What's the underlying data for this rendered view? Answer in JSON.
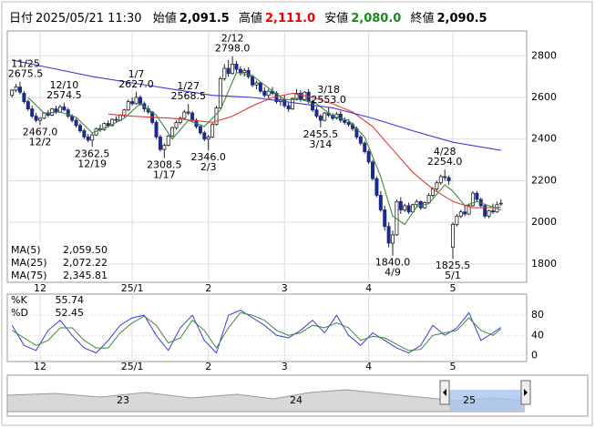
{
  "header": {
    "date_label": "日付",
    "datetime": "2025/05/21 11:30",
    "open_label": "始値",
    "open": {
      "value": 2091.5,
      "label": "2,091.5"
    },
    "high_label": "高値",
    "high": {
      "value": 2111.0,
      "label": "2,111.0"
    },
    "low_label": "安値",
    "low": {
      "value": 2080.0,
      "label": "2,080.0"
    },
    "close_label": "終値",
    "close": {
      "value": 2090.5,
      "label": "2,090.5"
    }
  },
  "chart_data": {
    "type": "candlestick",
    "categories": [
      null,
      null,
      null,
      null,
      null,
      null,
      null,
      "12",
      null,
      null,
      null,
      null,
      null,
      null,
      null,
      null,
      null,
      null,
      null,
      null,
      null,
      null,
      null,
      null,
      null,
      null,
      null,
      null,
      null,
      null,
      "25/1",
      null,
      null,
      null,
      null,
      null,
      null,
      null,
      null,
      null,
      null,
      null,
      null,
      null,
      null,
      null,
      null,
      null,
      null,
      "2",
      null,
      null,
      null,
      null,
      null,
      null,
      null,
      null,
      null,
      null,
      null,
      null,
      null,
      null,
      null,
      null,
      null,
      null,
      "3",
      null,
      null,
      null,
      null,
      null,
      null,
      null,
      null,
      null,
      null,
      null,
      null,
      null,
      null,
      null,
      null,
      null,
      null,
      null,
      null,
      "4",
      null,
      null,
      null,
      null,
      null,
      null,
      null,
      null,
      null,
      null,
      null,
      null,
      null,
      null,
      null,
      null,
      null,
      null,
      null,
      null,
      "5",
      null,
      null,
      null,
      null,
      null,
      null,
      null,
      null,
      null,
      null,
      null,
      null
    ],
    "ohlc": [
      [
        2610,
        2640,
        2600,
        2635
      ],
      [
        2635,
        2665,
        2625,
        2650
      ],
      [
        2650,
        2675.5,
        2615,
        2625
      ],
      [
        2620,
        2630,
        2570,
        2580
      ],
      [
        2580,
        2590,
        2535,
        2545
      ],
      [
        2545,
        2560,
        2500,
        2510
      ],
      [
        2510,
        2525,
        2480,
        2490
      ],
      [
        2490,
        2505,
        2467,
        2500
      ],
      [
        2500,
        2530,
        2495,
        2525
      ],
      [
        2525,
        2540,
        2505,
        2515
      ],
      [
        2515,
        2550,
        2510,
        2545
      ],
      [
        2545,
        2560,
        2520,
        2530
      ],
      [
        2530,
        2565,
        2525,
        2555
      ],
      [
        2555,
        2574.5,
        2535,
        2540
      ],
      [
        2540,
        2550,
        2500,
        2510
      ],
      [
        2510,
        2520,
        2480,
        2490
      ],
      [
        2490,
        2500,
        2455,
        2465
      ],
      [
        2465,
        2475,
        2430,
        2440
      ],
      [
        2440,
        2450,
        2400,
        2410
      ],
      [
        2410,
        2425,
        2385,
        2395
      ],
      [
        2395,
        2430,
        2362.5,
        2420
      ],
      [
        2420,
        2455,
        2415,
        2450
      ],
      [
        2450,
        2470,
        2435,
        2445
      ],
      [
        2445,
        2480,
        2440,
        2475
      ],
      [
        2475,
        2490,
        2455,
        2465
      ],
      [
        2465,
        2500,
        2460,
        2495
      ],
      [
        2495,
        2510,
        2480,
        2490
      ],
      [
        2490,
        2520,
        2485,
        2515
      ],
      [
        2515,
        2545,
        2505,
        2540
      ],
      [
        2540,
        2590,
        2535,
        2580
      ],
      [
        2580,
        2600,
        2560,
        2570
      ],
      [
        2570,
        2627,
        2565,
        2600
      ],
      [
        2600,
        2610,
        2560,
        2570
      ],
      [
        2570,
        2580,
        2530,
        2545
      ],
      [
        2545,
        2560,
        2520,
        2530
      ],
      [
        2530,
        2535,
        2470,
        2480
      ],
      [
        2480,
        2490,
        2400,
        2410
      ],
      [
        2410,
        2420,
        2340,
        2350
      ],
      [
        2350,
        2380,
        2308.5,
        2370
      ],
      [
        2370,
        2420,
        2365,
        2415
      ],
      [
        2415,
        2460,
        2410,
        2455
      ],
      [
        2455,
        2490,
        2445,
        2480
      ],
      [
        2480,
        2510,
        2470,
        2500
      ],
      [
        2500,
        2540,
        2495,
        2530
      ],
      [
        2530,
        2568.5,
        2515,
        2525
      ],
      [
        2525,
        2535,
        2480,
        2490
      ],
      [
        2490,
        2500,
        2450,
        2460
      ],
      [
        2460,
        2470,
        2420,
        2430
      ],
      [
        2430,
        2440,
        2390,
        2400
      ],
      [
        2400,
        2420,
        2346,
        2410
      ],
      [
        2410,
        2480,
        2405,
        2470
      ],
      [
        2470,
        2560,
        2465,
        2550
      ],
      [
        2550,
        2700,
        2545,
        2690
      ],
      [
        2690,
        2760,
        2680,
        2740
      ],
      [
        2740,
        2780,
        2700,
        2715
      ],
      [
        2715,
        2798,
        2710,
        2760
      ],
      [
        2760,
        2775,
        2720,
        2735
      ],
      [
        2735,
        2750,
        2705,
        2720
      ],
      [
        2720,
        2740,
        2700,
        2730
      ],
      [
        2730,
        2745,
        2690,
        2700
      ],
      [
        2700,
        2710,
        2650,
        2660
      ],
      [
        2660,
        2680,
        2640,
        2670
      ],
      [
        2670,
        2675,
        2620,
        2630
      ],
      [
        2630,
        2650,
        2600,
        2610
      ],
      [
        2610,
        2640,
        2595,
        2630
      ],
      [
        2630,
        2650,
        2610,
        2620
      ],
      [
        2620,
        2630,
        2570,
        2580
      ],
      [
        2580,
        2600,
        2560,
        2590
      ],
      [
        2590,
        2610,
        2550,
        2560
      ],
      [
        2560,
        2575,
        2530,
        2545
      ],
      [
        2545,
        2600,
        2540,
        2595
      ],
      [
        2595,
        2640,
        2585,
        2620
      ],
      [
        2620,
        2635,
        2580,
        2590
      ],
      [
        2590,
        2630,
        2585,
        2625
      ],
      [
        2625,
        2640,
        2570,
        2580
      ],
      [
        2580,
        2590,
        2530,
        2540
      ],
      [
        2540,
        2555,
        2500,
        2510
      ],
      [
        2510,
        2520,
        2455.5,
        2490
      ],
      [
        2490,
        2530,
        2485,
        2525
      ],
      [
        2525,
        2553,
        2505,
        2515
      ],
      [
        2515,
        2525,
        2490,
        2500
      ],
      [
        2500,
        2530,
        2495,
        2520
      ],
      [
        2520,
        2535,
        2480,
        2490
      ],
      [
        2490,
        2505,
        2470,
        2480
      ],
      [
        2480,
        2495,
        2460,
        2470
      ],
      [
        2470,
        2480,
        2440,
        2450
      ],
      [
        2450,
        2460,
        2400,
        2410
      ],
      [
        2410,
        2420,
        2370,
        2380
      ],
      [
        2380,
        2390,
        2330,
        2340
      ],
      [
        2340,
        2350,
        2280,
        2290
      ],
      [
        2290,
        2300,
        2200,
        2210
      ],
      [
        2210,
        2220,
        2120,
        2130
      ],
      [
        2130,
        2150,
        2050,
        2060
      ],
      [
        2060,
        2080,
        1960,
        1980
      ],
      [
        1980,
        2000,
        1880,
        1900
      ],
      [
        1900,
        1960,
        1840,
        1940
      ],
      [
        1940,
        2110,
        1935,
        2100
      ],
      [
        2100,
        2120,
        2040,
        2060
      ],
      [
        2060,
        2090,
        2050,
        2080
      ],
      [
        2080,
        2095,
        2040,
        2050
      ],
      [
        2050,
        2090,
        2045,
        2085
      ],
      [
        2085,
        2110,
        2070,
        2100
      ],
      [
        2100,
        2105,
        2060,
        2070
      ],
      [
        2070,
        2100,
        2065,
        2095
      ],
      [
        2095,
        2140,
        2090,
        2130
      ],
      [
        2130,
        2170,
        2120,
        2160
      ],
      [
        2160,
        2200,
        2150,
        2190
      ],
      [
        2190,
        2230,
        2180,
        2220
      ],
      [
        2220,
        2254,
        2200,
        2215
      ],
      [
        2215,
        2225,
        2180,
        2200
      ],
      [
        1880,
        2000,
        1825.5,
        1990
      ],
      [
        1990,
        2040,
        1980,
        2030
      ],
      [
        2030,
        2060,
        2020,
        2050
      ],
      [
        2050,
        2080,
        2030,
        2040
      ],
      [
        2040,
        2090,
        2035,
        2080
      ],
      [
        2080,
        2150,
        2075,
        2140
      ],
      [
        2140,
        2150,
        2100,
        2110
      ],
      [
        2110,
        2120,
        2070,
        2080
      ],
      [
        2080,
        2090,
        2020,
        2030
      ],
      [
        2030,
        2060,
        2020,
        2055
      ],
      [
        2055,
        2090,
        2040,
        2050
      ],
      [
        2050,
        2100,
        2045,
        2085
      ],
      [
        2091.5,
        2111,
        2080,
        2090.5
      ]
    ],
    "up_color": "#ffffff",
    "down_color": "#1c2a8c",
    "wick_color": "#222222",
    "series": [
      {
        "name": "MA(5)",
        "color": "#3a8a3a",
        "last": {
          "value": 2059.5,
          "label": "2,059.50"
        },
        "x": [
          4,
          8,
          12,
          16,
          20,
          24,
          28,
          32,
          36,
          40,
          44,
          48,
          52,
          56,
          60,
          64,
          68,
          72,
          76,
          80,
          84,
          88,
          92,
          95,
          98,
          101,
          104,
          108,
          110,
          113,
          116,
          119,
          122
        ],
        "values": [
          2600,
          2525,
          2530,
          2505,
          2430,
          2460,
          2500,
          2570,
          2515,
          2400,
          2490,
          2460,
          2540,
          2720,
          2705,
          2645,
          2590,
          2590,
          2570,
          2510,
          2490,
          2410,
          2220,
          2030,
          1990,
          2075,
          2090,
          2180,
          2150,
          2080,
          2100,
          2080,
          2059.5
        ]
      },
      {
        "name": "MA(25)",
        "color": "#e53935",
        "last": {
          "value": 2072.22,
          "label": "2,072.22"
        },
        "x": [
          24,
          30,
          40,
          50,
          55,
          60,
          65,
          70,
          75,
          80,
          85,
          90,
          95,
          100,
          105,
          110,
          115,
          122
        ],
        "values": [
          2520,
          2510,
          2500,
          2480,
          2510,
          2560,
          2600,
          2620,
          2600,
          2570,
          2530,
          2460,
          2350,
          2240,
          2160,
          2100,
          2070,
          2072.22
        ]
      },
      {
        "name": "MA(75)",
        "color": "#3b3bd8",
        "last": {
          "value": 2345.81,
          "label": "2,345.81"
        },
        "x": [
          0,
          10,
          20,
          30,
          40,
          50,
          60,
          70,
          80,
          90,
          100,
          110,
          122
        ],
        "values": [
          2780,
          2740,
          2700,
          2670,
          2640,
          2610,
          2600,
          2575,
          2550,
          2500,
          2440,
          2385,
          2345.81
        ]
      }
    ],
    "ylim": [
      1712,
      2915
    ],
    "yticks": [
      1800,
      2000,
      2200,
      2400,
      2600,
      2800
    ],
    "grid": true,
    "annotations": {
      "highs": [
        {
          "date": "11/25",
          "price": 2675.5
        },
        {
          "date": "12/10",
          "price": 2574.5
        },
        {
          "date": "1/7",
          "price": {
            "value": 2627,
            "label": "2627.0"
          }
        },
        {
          "date": "1/27",
          "price": 2568.5
        },
        {
          "date": "2/12",
          "price": {
            "value": 2798,
            "label": "2798.0"
          }
        },
        {
          "date": "3/18",
          "price": {
            "value": 2553,
            "label": "2553.0"
          }
        },
        {
          "date": "4/28",
          "price": {
            "value": 2254,
            "label": "2254.0"
          }
        }
      ],
      "lows": [
        {
          "date": "12/2",
          "price": {
            "value": 2467,
            "label": "2467.0"
          }
        },
        {
          "date": "12/19",
          "price": 2362.5
        },
        {
          "date": "1/17",
          "price": 2308.5
        },
        {
          "date": "2/3",
          "price": {
            "value": 2346,
            "label": "2346.0"
          }
        },
        {
          "date": "3/14",
          "price": 2455.5
        },
        {
          "date": "4/9",
          "price": {
            "value": 1840,
            "label": "1840.0"
          }
        },
        {
          "date": "5/1",
          "price": 1825.5
        }
      ]
    },
    "stochastic": {
      "type": "line",
      "ylim": [
        -12,
        122
      ],
      "yticks": [
        0,
        40,
        80
      ],
      "series": [
        {
          "name": "%K",
          "color": "#3b3bd8",
          "last": 55.74,
          "x": [
            0,
            3,
            6,
            9,
            12,
            15,
            18,
            21,
            24,
            27,
            30,
            33,
            36,
            39,
            42,
            45,
            48,
            51,
            54,
            57,
            60,
            63,
            66,
            69,
            72,
            75,
            78,
            81,
            84,
            87,
            90,
            93,
            96,
            99,
            102,
            105,
            108,
            111,
            114,
            117,
            120,
            122
          ],
          "values": [
            60,
            20,
            10,
            50,
            70,
            40,
            15,
            5,
            30,
            60,
            75,
            80,
            40,
            10,
            55,
            80,
            30,
            5,
            80,
            90,
            75,
            60,
            40,
            35,
            50,
            70,
            45,
            80,
            40,
            20,
            45,
            30,
            15,
            5,
            20,
            60,
            40,
            55,
            85,
            30,
            45,
            55.74
          ]
        },
        {
          "name": "%D",
          "color": "#3a8a3a",
          "last": 52.45,
          "x": [
            0,
            3,
            6,
            9,
            12,
            15,
            18,
            21,
            24,
            27,
            30,
            33,
            36,
            39,
            42,
            45,
            48,
            51,
            54,
            57,
            60,
            63,
            66,
            69,
            72,
            75,
            78,
            81,
            84,
            87,
            90,
            93,
            96,
            99,
            102,
            105,
            108,
            111,
            114,
            117,
            120,
            122
          ],
          "values": [
            50,
            35,
            20,
            30,
            55,
            55,
            30,
            15,
            15,
            45,
            65,
            78,
            60,
            25,
            35,
            70,
            50,
            15,
            55,
            85,
            80,
            70,
            50,
            40,
            45,
            60,
            55,
            65,
            55,
            30,
            38,
            35,
            22,
            10,
            12,
            40,
            45,
            50,
            75,
            50,
            40,
            52.45
          ]
        }
      ]
    },
    "navigator": {
      "labels": [
        "23",
        "24",
        "25"
      ]
    }
  }
}
